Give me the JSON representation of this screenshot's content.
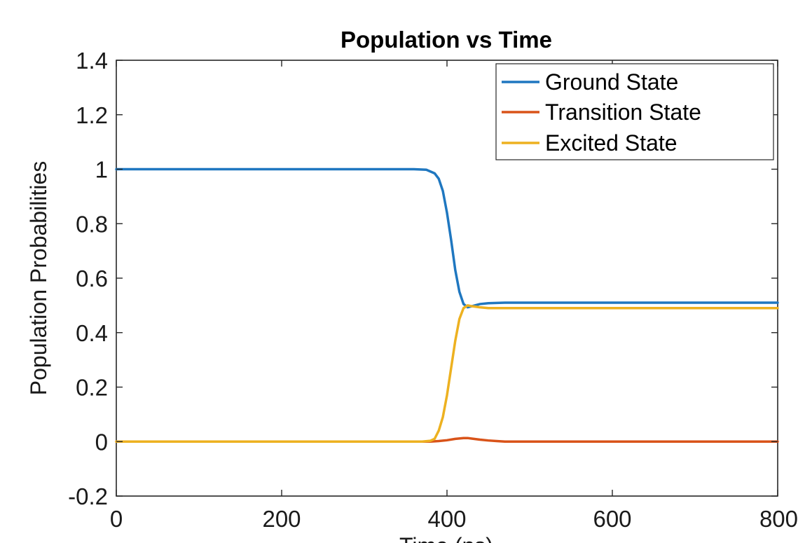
{
  "chart_data": {
    "type": "line",
    "title": "Population vs Time",
    "xlabel": "Time (ns)",
    "ylabel": "Population Probabilities",
    "xlim": [
      0,
      800
    ],
    "ylim": [
      -0.2,
      1.4
    ],
    "xticks": [
      0,
      200,
      400,
      600,
      800
    ],
    "xtick_labels": [
      "0",
      "200",
      "400",
      "600",
      "800"
    ],
    "yticks": [
      -0.2,
      0,
      0.2,
      0.4,
      0.6,
      0.8,
      1,
      1.2,
      1.4
    ],
    "ytick_labels": [
      "-0.2",
      "0",
      "0.2",
      "0.4",
      "0.6",
      "0.8",
      "1",
      "1.2",
      "1.4"
    ],
    "grid": false,
    "legend_position": "top-right",
    "series": [
      {
        "name": "Ground State",
        "color": "#1f77c0",
        "x": [
          0,
          100,
          200,
          300,
          360,
          375,
          385,
          390,
          395,
          400,
          405,
          410,
          415,
          420,
          425,
          430,
          440,
          450,
          470,
          500,
          600,
          700,
          800
        ],
        "y": [
          1,
          1,
          1,
          1,
          1,
          0.998,
          0.985,
          0.965,
          0.92,
          0.84,
          0.74,
          0.63,
          0.55,
          0.505,
          0.493,
          0.497,
          0.505,
          0.508,
          0.51,
          0.51,
          0.51,
          0.51,
          0.51
        ]
      },
      {
        "name": "Transition State",
        "color": "#d95319",
        "x": [
          0,
          100,
          200,
          300,
          380,
          390,
          400,
          410,
          420,
          425,
          430,
          440,
          450,
          460,
          470,
          500,
          600,
          700,
          800
        ],
        "y": [
          0,
          0,
          0,
          0,
          0,
          0.002,
          0.005,
          0.01,
          0.013,
          0.013,
          0.011,
          0.007,
          0.004,
          0.002,
          0,
          0,
          0,
          0,
          0
        ]
      },
      {
        "name": "Excited State",
        "color": "#edb120",
        "x": [
          0,
          100,
          200,
          300,
          370,
          380,
          385,
          390,
          395,
          400,
          405,
          410,
          415,
          420,
          425,
          430,
          440,
          450,
          470,
          500,
          600,
          700,
          800
        ],
        "y": [
          0,
          0,
          0,
          0,
          0,
          0.003,
          0.01,
          0.04,
          0.09,
          0.17,
          0.27,
          0.37,
          0.45,
          0.49,
          0.5,
          0.497,
          0.493,
          0.49,
          0.49,
          0.49,
          0.49,
          0.49,
          0.49
        ]
      }
    ]
  }
}
